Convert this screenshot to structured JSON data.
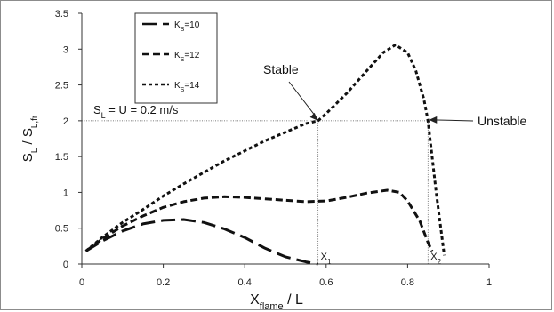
{
  "chart_data": {
    "type": "line",
    "xlabel": {
      "main": "X",
      "sub": "flame",
      "tail": " / L"
    },
    "ylabel": {
      "main": "S",
      "sub1": "L",
      "mid": " / S",
      "sub2": "L,fr"
    },
    "xlim": [
      0,
      1
    ],
    "ylim": [
      0,
      3.5
    ],
    "xticks": [
      "0",
      "0.2",
      "0.4",
      "0.6",
      "0.8",
      "1"
    ],
    "yticks": [
      "0",
      "0.5",
      "1",
      "1.5",
      "2",
      "2.5",
      "3",
      "3.5"
    ],
    "grid": false,
    "legend_position": "top-left",
    "series": [
      {
        "name": "K_S=10",
        "label_main": "K",
        "label_sub": "S",
        "label_tail": "=10",
        "dash": "long-dash",
        "x": [
          0.01,
          0.05,
          0.1,
          0.15,
          0.2,
          0.25,
          0.3,
          0.35,
          0.4,
          0.45,
          0.5,
          0.55,
          0.58
        ],
        "y": [
          0.18,
          0.32,
          0.46,
          0.56,
          0.61,
          0.62,
          0.58,
          0.49,
          0.37,
          0.22,
          0.1,
          0.03,
          0.0
        ]
      },
      {
        "name": "K_S=12",
        "label_main": "K",
        "label_sub": "S",
        "label_tail": "=12",
        "dash": "medium-dash",
        "x": [
          0.01,
          0.05,
          0.1,
          0.15,
          0.2,
          0.25,
          0.3,
          0.35,
          0.4,
          0.45,
          0.5,
          0.55,
          0.6,
          0.65,
          0.7,
          0.75,
          0.78,
          0.8,
          0.83,
          0.85,
          0.86
        ],
        "y": [
          0.18,
          0.35,
          0.53,
          0.67,
          0.79,
          0.87,
          0.92,
          0.94,
          0.93,
          0.91,
          0.89,
          0.87,
          0.88,
          0.93,
          0.99,
          1.03,
          1.0,
          0.88,
          0.6,
          0.3,
          0.18
        ]
      },
      {
        "name": "K_S=14",
        "label_main": "K",
        "label_sub": "S",
        "label_tail": "=14",
        "dash": "short-dash",
        "x": [
          0.01,
          0.05,
          0.1,
          0.15,
          0.2,
          0.25,
          0.3,
          0.35,
          0.4,
          0.45,
          0.5,
          0.55,
          0.58,
          0.6,
          0.65,
          0.7,
          0.74,
          0.77,
          0.8,
          0.82,
          0.84,
          0.85,
          0.87,
          0.89
        ],
        "y": [
          0.18,
          0.37,
          0.58,
          0.76,
          0.95,
          1.12,
          1.28,
          1.44,
          1.58,
          1.72,
          1.84,
          1.96,
          2.0,
          2.1,
          2.38,
          2.7,
          2.95,
          3.06,
          2.95,
          2.7,
          2.3,
          2.0,
          1.0,
          0.12
        ]
      }
    ],
    "reference_line": {
      "y": 2,
      "x_from": 0,
      "x_to": 0.85,
      "label_pre": "S",
      "label_sub": "L",
      "label_post": " = U = 0.2 m/s"
    },
    "markers": [
      {
        "x": 0.58,
        "label": "X",
        "sub": "1"
      },
      {
        "x": 0.85,
        "label": "X",
        "sub": "2"
      }
    ],
    "annotations": [
      {
        "text": "Stable",
        "point": [
          0.58,
          2.0
        ]
      },
      {
        "text": "Unstable",
        "point": [
          0.85,
          2.0
        ]
      }
    ]
  }
}
